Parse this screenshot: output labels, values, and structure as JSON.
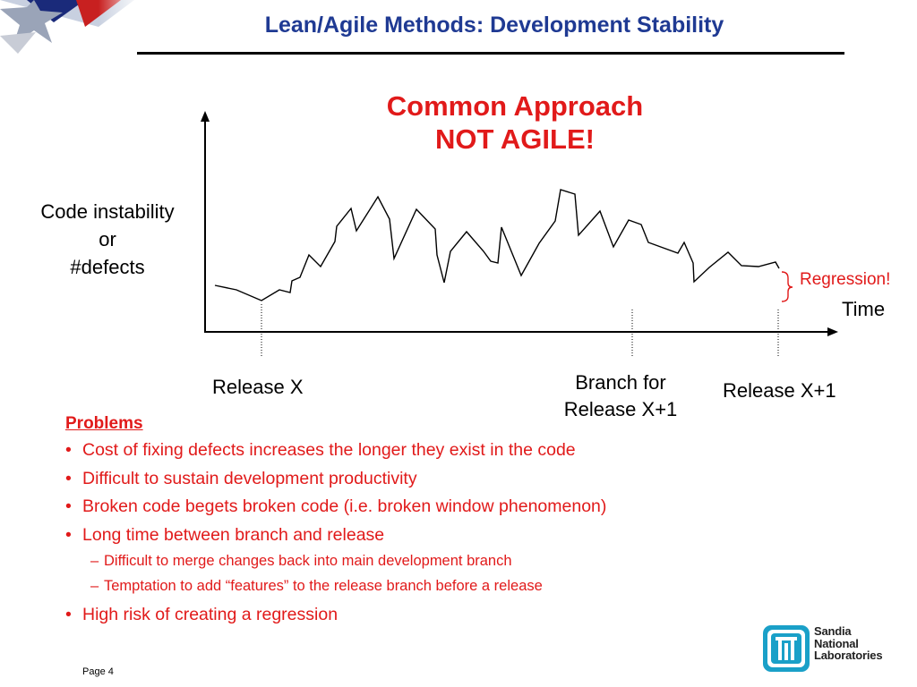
{
  "header": {
    "title": "Lean/Agile Methods: Development Stability"
  },
  "chart": {
    "callout_line1": "Common Approach",
    "callout_line2": "NOT AGILE!",
    "y_label_lines": [
      "Code instability",
      "or",
      "#defects"
    ],
    "x_label": "Time",
    "regression_label": "Regression!",
    "release_x": "Release X",
    "branch_label_lines": [
      "Branch for",
      "Release X+1"
    ],
    "release_x1": "Release X+1"
  },
  "problems": {
    "heading": "Problems",
    "bullet_mark": "•",
    "dash_mark": "–",
    "items": [
      "Cost of fixing defects increases the longer they exist in the code",
      "Difficult to sustain development productivity",
      "Broken code begets broken code (i.e. broken window phenomenon)",
      "Long time between branch and release"
    ],
    "sub_items": [
      "Difficult to merge changes back into main development branch",
      "Temptation to add “features” to the release branch before a release"
    ],
    "last_item": "High risk of creating a regression"
  },
  "footer": {
    "page_number": "Page 4",
    "logo_lines": [
      "Sandia",
      "National",
      "Laboratories"
    ]
  },
  "colors": {
    "title": "#1f3a93",
    "accent_red": "#e11a1a",
    "logo_teal": "#1aa0c8"
  }
}
